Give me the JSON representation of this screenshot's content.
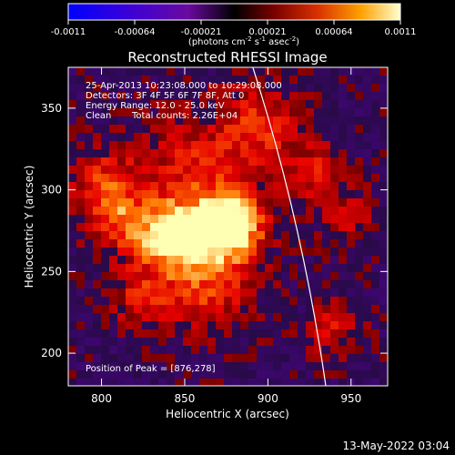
{
  "colorbar": {
    "ticks": [
      "-0.0011",
      "-0.00064",
      "-0.00021",
      "0.00021",
      "0.00064",
      "0.0011"
    ],
    "units_main": "(photons cm",
    "units_exp1": "-2",
    "units_mid": " s",
    "units_exp2": "-1",
    "units_end": " asec",
    "units_exp3": "-2",
    "units_close": ")"
  },
  "image": {
    "title": "Reconstructed RHESSI Image",
    "xlabel": "Heliocentric X (arcsec)",
    "ylabel": "Heliocentric Y (arcsec)",
    "xticks": [
      800,
      850,
      900,
      950
    ],
    "yticks": [
      200,
      250,
      300,
      350
    ],
    "xrange": [
      780,
      972
    ],
    "yrange": [
      180,
      375
    ],
    "peak": [
      876,
      278
    ]
  },
  "overlay": {
    "time_range": "25-Apr-2013 10:23:08.000 to 10:29:08.000",
    "detectors": "Detectors: 3F 4F 5F 6F 7F 8F, Att 0",
    "energy": "Energy Range: 12.0 - 25.0 keV",
    "method": "Clean",
    "counts": "Total counts: 2.26E+04",
    "peak_text": "Position of Peak = [876,278]"
  },
  "footer": {
    "date": "13-May-2022 03:04"
  }
}
